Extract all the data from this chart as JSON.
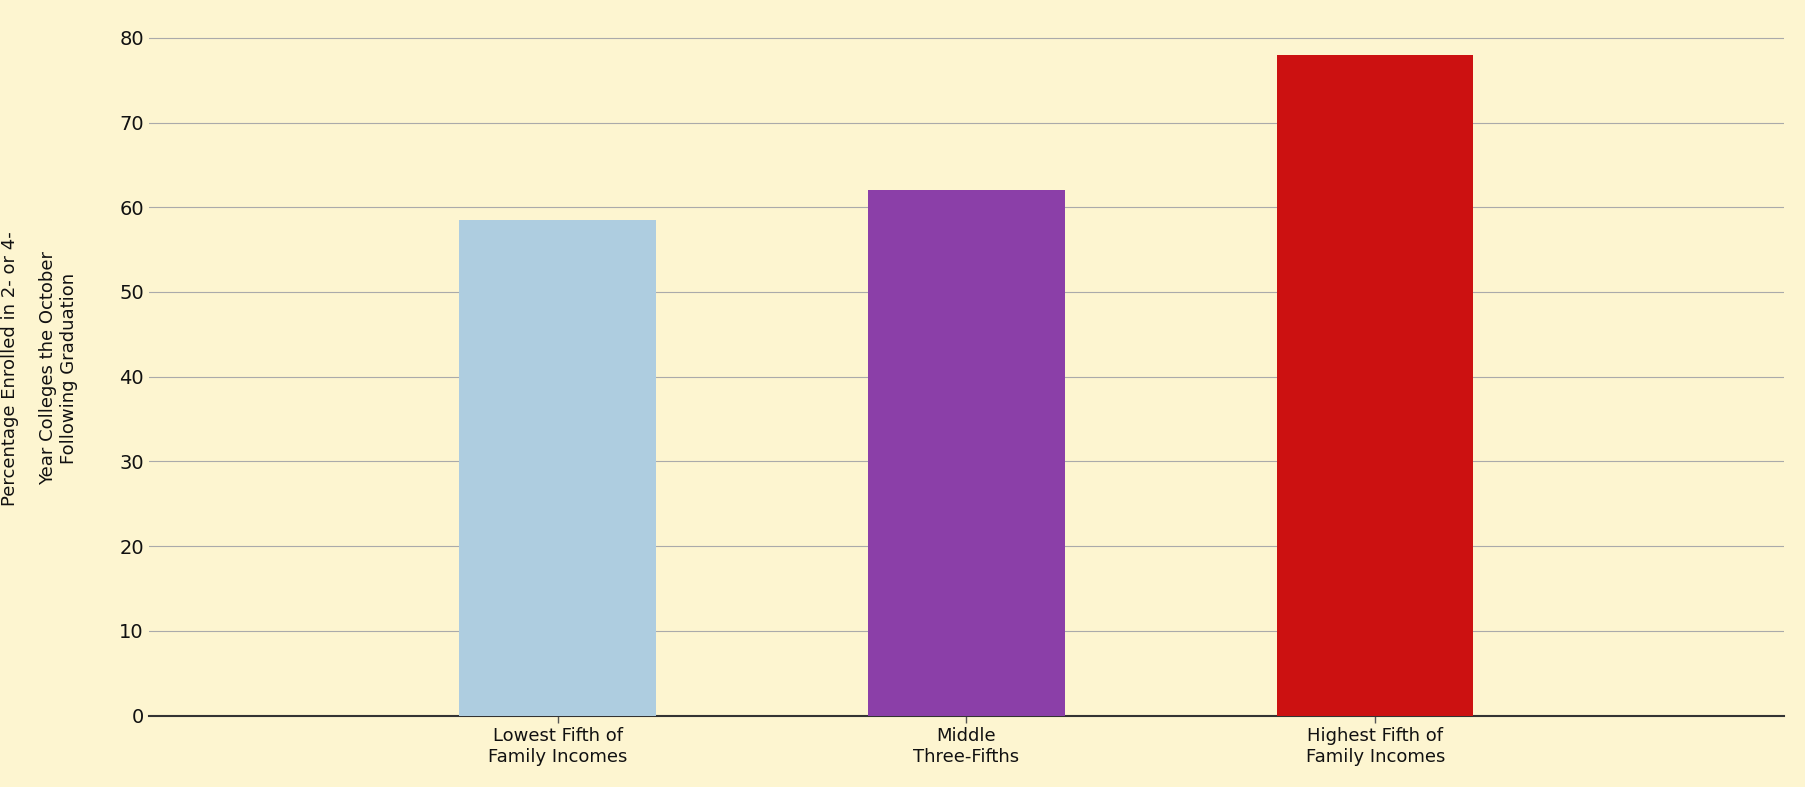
{
  "categories": [
    "Lowest Fifth of\nFamily Incomes",
    "Middle\nThree-Fifths",
    "Highest Fifth of\nFamily Incomes"
  ],
  "values": [
    58.5,
    62.0,
    78.0
  ],
  "bar_colors": [
    "#aecde0",
    "#8b3fa8",
    "#cc1111"
  ],
  "bar_width": 0.12,
  "x_positions": [
    0.25,
    0.5,
    0.75
  ],
  "ylabel_line1": "Percentage Enrolled in 2- or 4-",
  "ylabel_line2": "Year Colleges the October\nFollowing Graduation",
  "ylim": [
    0,
    82
  ],
  "yticks": [
    0,
    10,
    20,
    30,
    40,
    50,
    60,
    70,
    80
  ],
  "xlim": [
    0.0,
    1.0
  ],
  "background_color": "#fdf5d0",
  "grid_color": "#aaaaaa",
  "ylabel_fontsize": 13,
  "tick_fontsize": 14,
  "xlabel_fontsize": 13
}
